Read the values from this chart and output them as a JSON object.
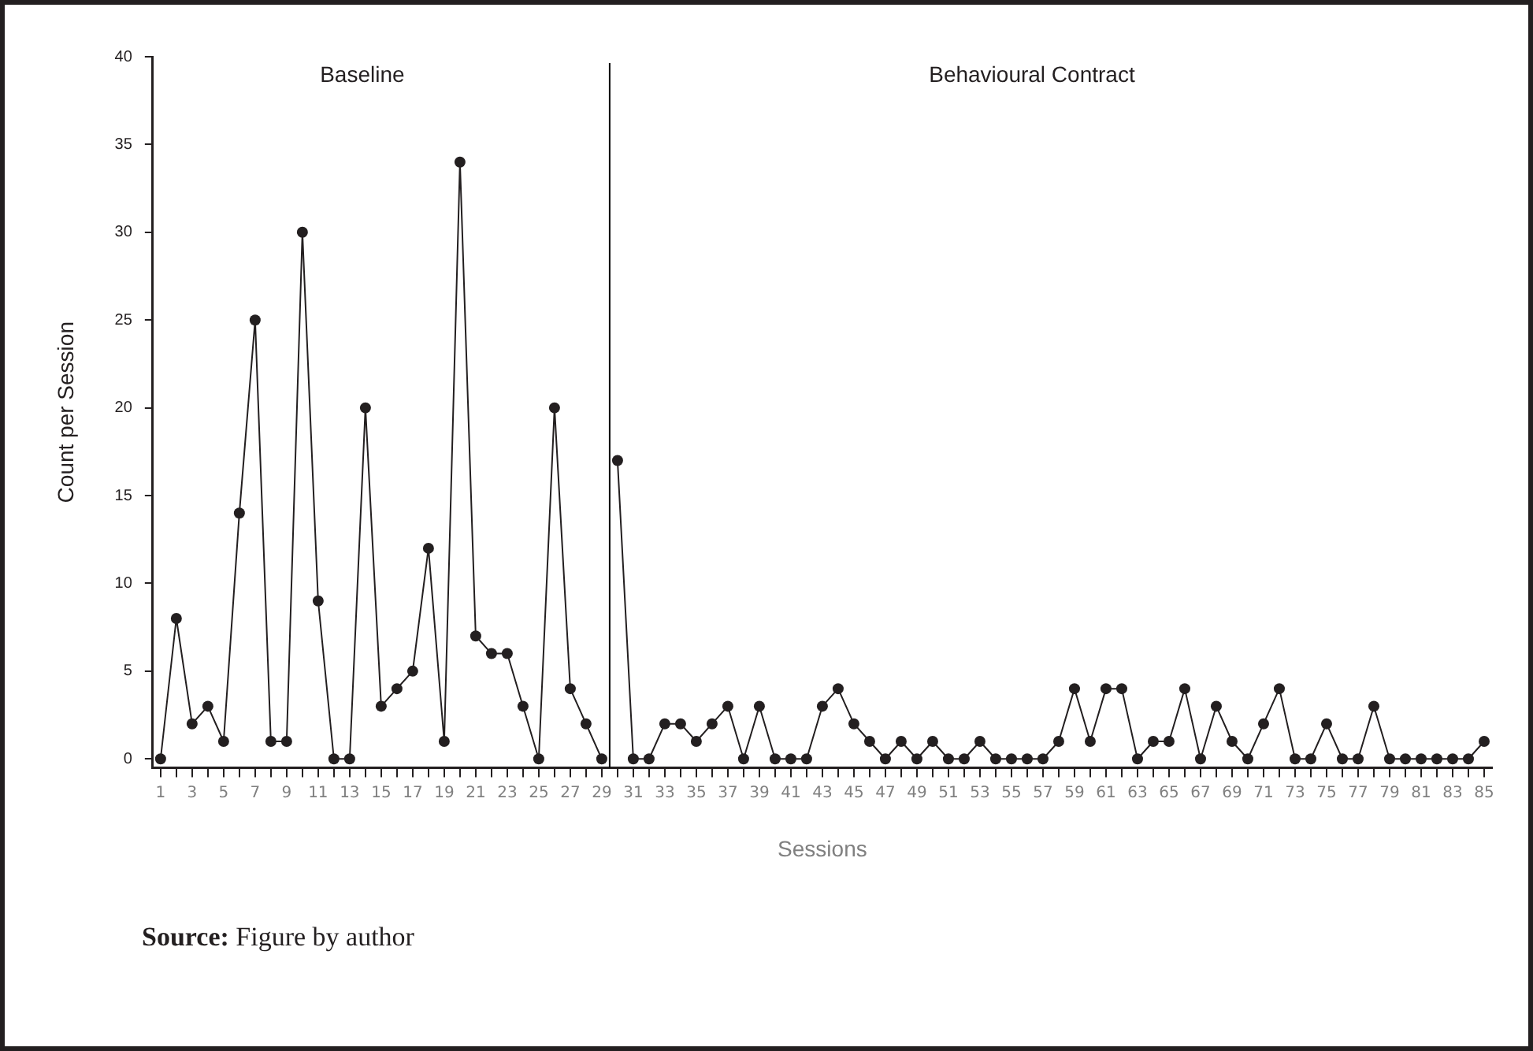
{
  "chart_data": {
    "type": "line",
    "xlabel": "Sessions",
    "ylabel": "Count per Session",
    "xlim": [
      0.5,
      85.5
    ],
    "xticks": [
      1,
      {
        "value": 2,
        "label": null
      },
      3,
      {
        "value": 4,
        "label": null
      },
      5,
      {
        "value": 6,
        "label": null
      },
      7,
      {
        "value": 8,
        "label": null
      },
      9,
      {
        "value": 10,
        "label": null
      },
      11,
      {
        "value": 12,
        "label": null
      },
      13,
      {
        "value": 14,
        "label": null
      },
      15,
      {
        "value": 16,
        "label": null
      },
      17,
      {
        "value": 18,
        "label": null
      },
      19,
      {
        "value": 20,
        "label": null
      },
      21,
      {
        "value": 22,
        "label": null
      },
      23,
      {
        "value": 24,
        "label": null
      },
      25,
      {
        "value": 26,
        "label": null
      },
      27,
      {
        "value": 28,
        "label": null
      },
      29,
      {
        "value": 30,
        "label": null
      },
      31,
      {
        "value": 32,
        "label": null
      },
      33,
      {
        "value": 34,
        "label": null
      },
      35,
      {
        "value": 36,
        "label": null
      },
      37,
      {
        "value": 38,
        "label": null
      },
      39,
      {
        "value": 40,
        "label": null
      },
      41,
      {
        "value": 42,
        "label": null
      },
      43,
      {
        "value": 44,
        "label": null
      },
      45,
      {
        "value": 46,
        "label": null
      },
      47,
      {
        "value": 48,
        "label": null
      },
      49,
      {
        "value": 50,
        "label": null
      },
      51,
      {
        "value": 52,
        "label": null
      },
      53,
      {
        "value": 54,
        "label": null
      },
      55,
      {
        "value": 56,
        "label": null
      },
      57,
      {
        "value": 58,
        "label": null
      },
      59,
      {
        "value": 60,
        "label": null
      },
      61,
      {
        "value": 62,
        "label": null
      },
      63,
      {
        "value": 64,
        "label": null
      },
      65,
      {
        "value": 66,
        "label": null
      },
      67,
      {
        "value": 68,
        "label": null
      },
      69,
      {
        "value": 70,
        "label": null
      },
      71,
      {
        "value": 72,
        "label": null
      },
      73,
      {
        "value": 74,
        "label": null
      },
      75,
      {
        "value": 76,
        "label": null
      },
      77,
      {
        "value": 78,
        "label": null
      },
      79,
      {
        "value": 80,
        "label": null
      },
      81,
      {
        "value": 82,
        "label": null
      },
      83,
      {
        "value": 84,
        "label": null
      },
      85
    ],
    "ylim": [
      -0.5,
      40
    ],
    "yticks": [
      0,
      5,
      10,
      15,
      20,
      25,
      30,
      35,
      40
    ],
    "series": [
      {
        "color": "#231f20",
        "x": [
          1,
          2,
          3,
          4,
          5,
          6,
          7,
          8,
          9,
          10,
          11,
          12,
          13,
          14,
          15,
          16,
          17,
          18,
          19,
          20,
          21,
          22,
          23,
          24,
          25,
          26,
          27,
          28,
          29
        ],
        "values": [
          0,
          8,
          2,
          3,
          1,
          14,
          25,
          1,
          1,
          30,
          9,
          0,
          0,
          20,
          3,
          4,
          5,
          12,
          1,
          34,
          7,
          6,
          6,
          3,
          0,
          20,
          4,
          2,
          0
        ]
      },
      {
        "color": "#231f20",
        "x": [
          30,
          31,
          32,
          33,
          34,
          35,
          36,
          37,
          38,
          39,
          40,
          41,
          42,
          43,
          44,
          45,
          46,
          47,
          48,
          49,
          50,
          51,
          52,
          53,
          54,
          55,
          56,
          57,
          58,
          59,
          60,
          61,
          62,
          63,
          64,
          65,
          66,
          67,
          68,
          69,
          70,
          71,
          72,
          73,
          74,
          75,
          76,
          77,
          78,
          79,
          80,
          81,
          82,
          83,
          84,
          85
        ],
        "values": [
          17,
          0,
          0,
          2,
          2,
          1,
          2,
          3,
          0,
          3,
          0,
          0,
          0,
          3,
          4,
          2,
          1,
          0,
          1,
          0,
          1,
          0,
          0,
          1,
          0,
          0,
          0,
          0,
          1,
          4,
          1,
          4,
          4,
          0,
          1,
          1,
          4,
          0,
          3,
          1,
          0,
          2,
          4,
          0,
          0,
          2,
          0,
          0,
          3,
          0,
          0,
          0,
          0,
          0,
          0,
          1
        ]
      }
    ],
    "ref_lines": [
      {
        "axis": "x",
        "value": 29.5,
        "color": "#000000"
      }
    ],
    "annotations": [
      "Baseline",
      "Behavioural Contract",
      "Source: Figure by author"
    ],
    "marker": "circle",
    "line_style": "solid",
    "grid": false,
    "legend": false
  }
}
